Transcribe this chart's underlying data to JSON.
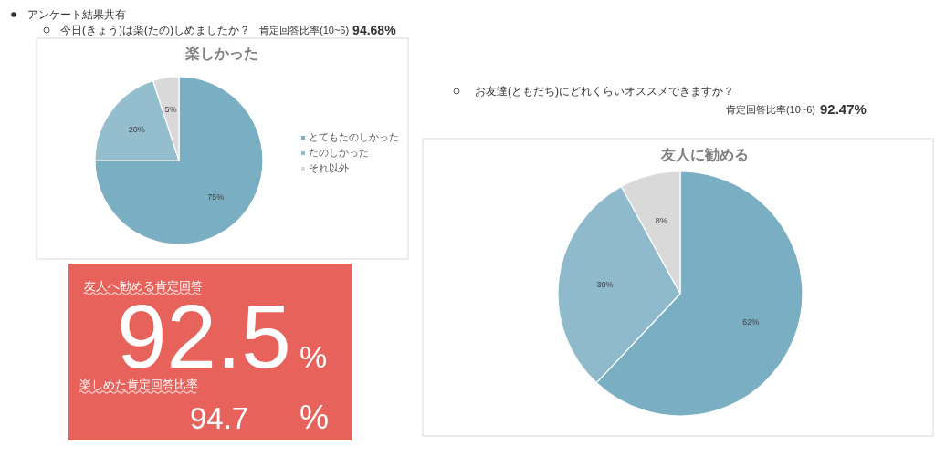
{
  "chart_data": [
    {
      "type": "pie",
      "title": "楽しかった",
      "categories": [
        "とてもたのしかった",
        "たのしかった",
        "それ以外"
      ],
      "values": [
        75,
        20,
        5
      ],
      "colors": [
        "#7aaec2",
        "#94bdcd",
        "#d9d9d9"
      ],
      "value_labels": [
        "75%",
        "20%",
        "5%"
      ],
      "legend": "right",
      "annotations": [
        "アンケート結果共有",
        "今日(きょう)は楽(たの)しめましたか？",
        "肯定回答比率(10~6)",
        "94.68%"
      ]
    },
    {
      "type": "pie",
      "title": "友人に勧める",
      "categories": [
        null,
        null,
        null
      ],
      "values": [
        62,
        30,
        8
      ],
      "colors": [
        "#7aaec2",
        "#8fbacb",
        "#d9d9d9"
      ],
      "value_labels": [
        "62%",
        "30%",
        "8%"
      ],
      "annotations": [
        "お友達(ともだち)にどれくらいオススメできますか？",
        "肯定回答比率(10~6)",
        "92.47%"
      ]
    },
    {
      "type": "other",
      "annotations": [
        "友人へ勧める肯定回答",
        "92.5",
        "%",
        "楽しめた肯定回答比率",
        "94.7",
        "%"
      ]
    }
  ]
}
